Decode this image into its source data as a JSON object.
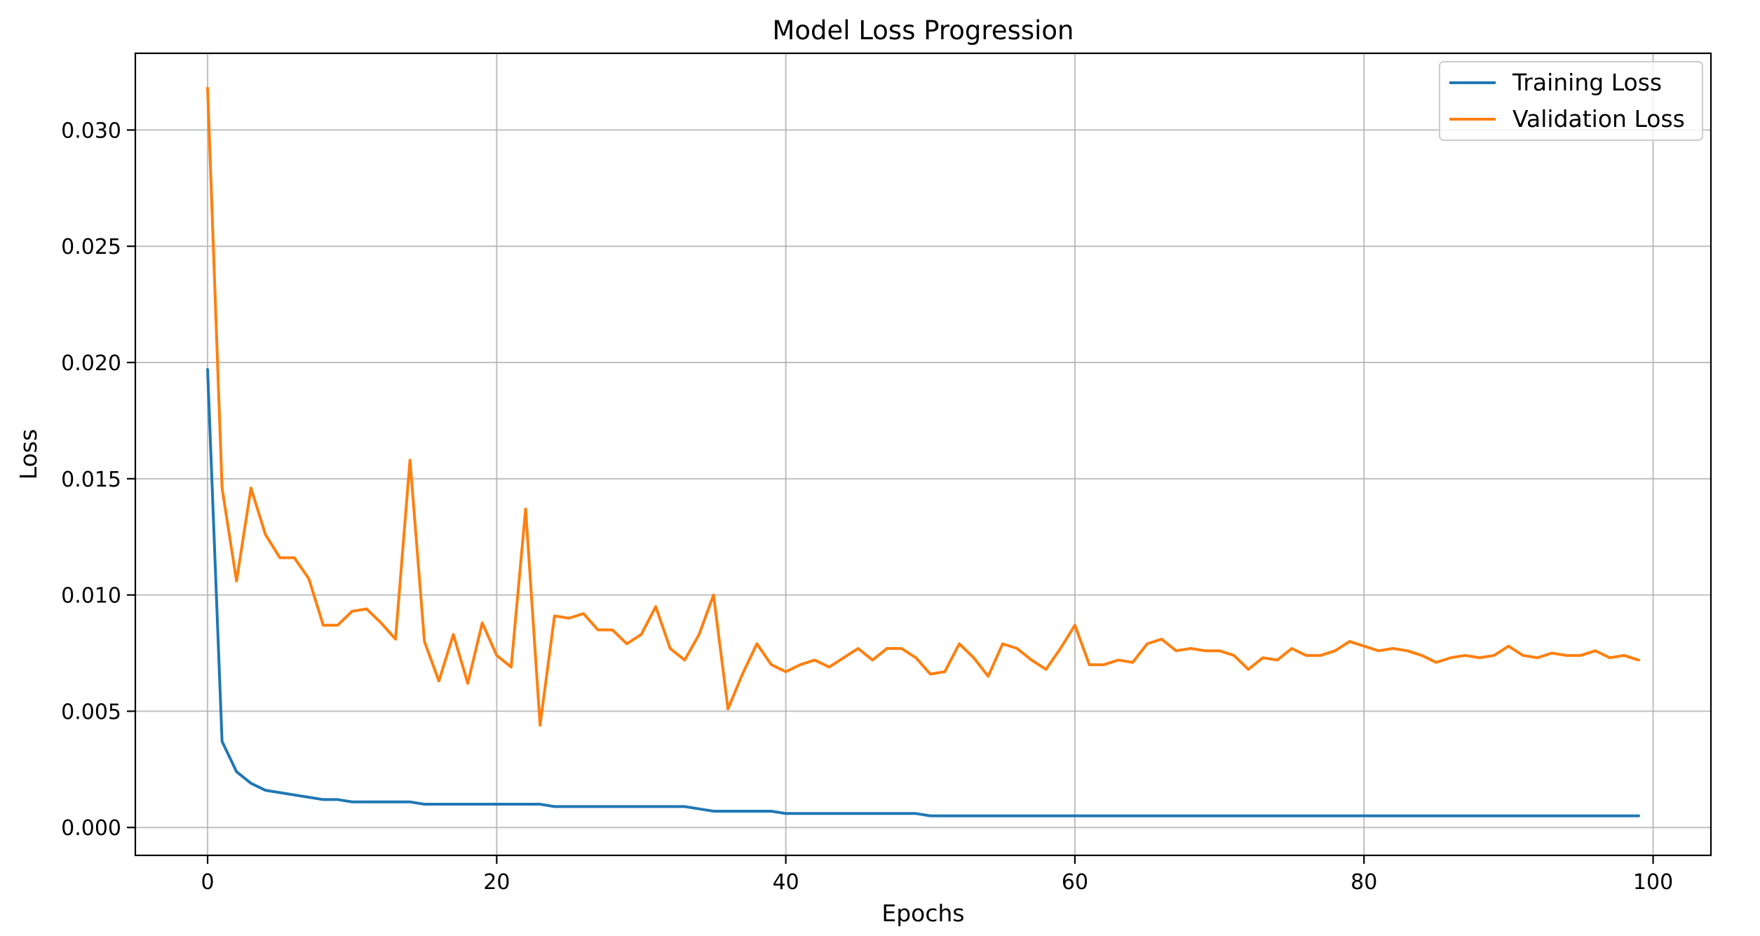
{
  "chart_data": {
    "type": "line",
    "title": "Model Loss Progression",
    "xlabel": "Epochs",
    "ylabel": "Loss",
    "xlim": [
      -5,
      104
    ],
    "ylim": [
      -0.0012,
      0.0333
    ],
    "xticks": [
      0,
      20,
      40,
      60,
      80,
      100
    ],
    "yticks": [
      0.0,
      0.005,
      0.01,
      0.015,
      0.02,
      0.025,
      0.03
    ],
    "ytick_labels": [
      "0.000",
      "0.005",
      "0.010",
      "0.015",
      "0.020",
      "0.025",
      "0.030"
    ],
    "xtick_labels": [
      "0",
      "20",
      "40",
      "60",
      "80",
      "100"
    ],
    "grid": true,
    "legend_position": "top-right",
    "x": [
      0,
      1,
      2,
      3,
      4,
      5,
      6,
      7,
      8,
      9,
      10,
      11,
      12,
      13,
      14,
      15,
      16,
      17,
      18,
      19,
      20,
      21,
      22,
      23,
      24,
      25,
      26,
      27,
      28,
      29,
      30,
      31,
      32,
      33,
      34,
      35,
      36,
      37,
      38,
      39,
      40,
      41,
      42,
      43,
      44,
      45,
      46,
      47,
      48,
      49,
      50,
      51,
      52,
      53,
      54,
      55,
      56,
      57,
      58,
      59,
      60,
      61,
      62,
      63,
      64,
      65,
      66,
      67,
      68,
      69,
      70,
      71,
      72,
      73,
      74,
      75,
      76,
      77,
      78,
      79,
      80,
      81,
      82,
      83,
      84,
      85,
      86,
      87,
      88,
      89,
      90,
      91,
      92,
      93,
      94,
      95,
      96,
      97,
      98,
      99
    ],
    "series": [
      {
        "name": "Training Loss",
        "color": "#1f77b4",
        "values": [
          0.0197,
          0.0037,
          0.0024,
          0.0019,
          0.0016,
          0.0015,
          0.0014,
          0.0013,
          0.0012,
          0.0012,
          0.0011,
          0.0011,
          0.0011,
          0.0011,
          0.0011,
          0.001,
          0.001,
          0.001,
          0.001,
          0.001,
          0.001,
          0.001,
          0.001,
          0.001,
          0.0009,
          0.0009,
          0.0009,
          0.0009,
          0.0009,
          0.0009,
          0.0009,
          0.0009,
          0.0009,
          0.0009,
          0.0008,
          0.0007,
          0.0007,
          0.0007,
          0.0007,
          0.0007,
          0.0006,
          0.0006,
          0.0006,
          0.0006,
          0.0006,
          0.0006,
          0.0006,
          0.0006,
          0.0006,
          0.0006,
          0.0005,
          0.0005,
          0.0005,
          0.0005,
          0.0005,
          0.0005,
          0.0005,
          0.0005,
          0.0005,
          0.0005,
          0.0005,
          0.0005,
          0.0005,
          0.0005,
          0.0005,
          0.0005,
          0.0005,
          0.0005,
          0.0005,
          0.0005,
          0.0005,
          0.0005,
          0.0005,
          0.0005,
          0.0005,
          0.0005,
          0.0005,
          0.0005,
          0.0005,
          0.0005,
          0.0005,
          0.0005,
          0.0005,
          0.0005,
          0.0005,
          0.0005,
          0.0005,
          0.0005,
          0.0005,
          0.0005,
          0.0005,
          0.0005,
          0.0005,
          0.0005,
          0.0005,
          0.0005,
          0.0005,
          0.0005,
          0.0005,
          0.0005
        ]
      },
      {
        "name": "Validation Loss",
        "color": "#ff7f0e",
        "values": [
          0.0318,
          0.0146,
          0.0106,
          0.0146,
          0.0126,
          0.0116,
          0.0116,
          0.0107,
          0.0087,
          0.0087,
          0.0093,
          0.0094,
          0.0088,
          0.0081,
          0.0158,
          0.008,
          0.0063,
          0.0083,
          0.0062,
          0.0088,
          0.0074,
          0.0069,
          0.0137,
          0.0044,
          0.0091,
          0.009,
          0.0092,
          0.0085,
          0.0085,
          0.0079,
          0.0083,
          0.0095,
          0.0077,
          0.0072,
          0.0083,
          0.01,
          0.0051,
          0.0066,
          0.0079,
          0.007,
          0.0067,
          0.007,
          0.0072,
          0.0069,
          0.0073,
          0.0077,
          0.0072,
          0.0077,
          0.0077,
          0.0073,
          0.0066,
          0.0067,
          0.0079,
          0.0073,
          0.0065,
          0.0079,
          0.0077,
          0.0072,
          0.0068,
          0.0077,
          0.0087,
          0.007,
          0.007,
          0.0072,
          0.0071,
          0.0079,
          0.0081,
          0.0076,
          0.0077,
          0.0076,
          0.0076,
          0.0074,
          0.0068,
          0.0073,
          0.0072,
          0.0077,
          0.0074,
          0.0074,
          0.0076,
          0.008,
          0.0078,
          0.0076,
          0.0077,
          0.0076,
          0.0074,
          0.0071,
          0.0073,
          0.0074,
          0.0073,
          0.0074,
          0.0078,
          0.0074,
          0.0073,
          0.0075,
          0.0074,
          0.0074,
          0.0076,
          0.0073,
          0.0074,
          0.0072
        ]
      }
    ]
  }
}
